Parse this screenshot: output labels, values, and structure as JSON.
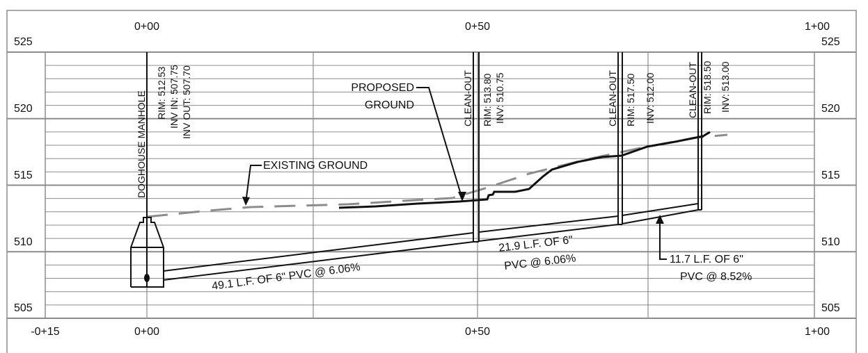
{
  "top_stations": [
    "0+00",
    "0+50",
    "1+00"
  ],
  "bottom_stations": [
    "-0+15",
    "0+00",
    "0+50",
    "1+00"
  ],
  "elevations": [
    "525",
    "520",
    "515",
    "510",
    "505"
  ],
  "structures": [
    {
      "name": "DOGHOUSE MANHOLE",
      "details": [
        "RIM: 512.53",
        "INV IN: 507.75",
        "INV OUT: 507.70"
      ]
    },
    {
      "name": "CLEAN-OUT",
      "details": [
        "RIM: 513.80",
        "INV: 510.75"
      ]
    },
    {
      "name": "CLEAN-OUT",
      "details": [
        "RIM: 517.50",
        "INV: 512.00"
      ]
    },
    {
      "name": "CLEAN-OUT",
      "details": [
        "RIM: 518.50",
        "INV: 513.00"
      ]
    }
  ],
  "callouts": {
    "proposed": [
      "PROPOSED",
      "GROUND"
    ],
    "existing": "EXISTING GROUND",
    "pipe1": "49.1 L.F. OF 6\" PVC @ 6.06%",
    "pipe2": [
      "21.9 L.F. OF 6\"",
      "PVC @ 6.06%"
    ],
    "pipe3": [
      "11.7 L.F. OF 6\"",
      "PVC @ 8.52%"
    ]
  },
  "colors": {
    "line": "#111111",
    "grid": "#8c8c8c",
    "existing_ground": "#8c8c8c"
  }
}
